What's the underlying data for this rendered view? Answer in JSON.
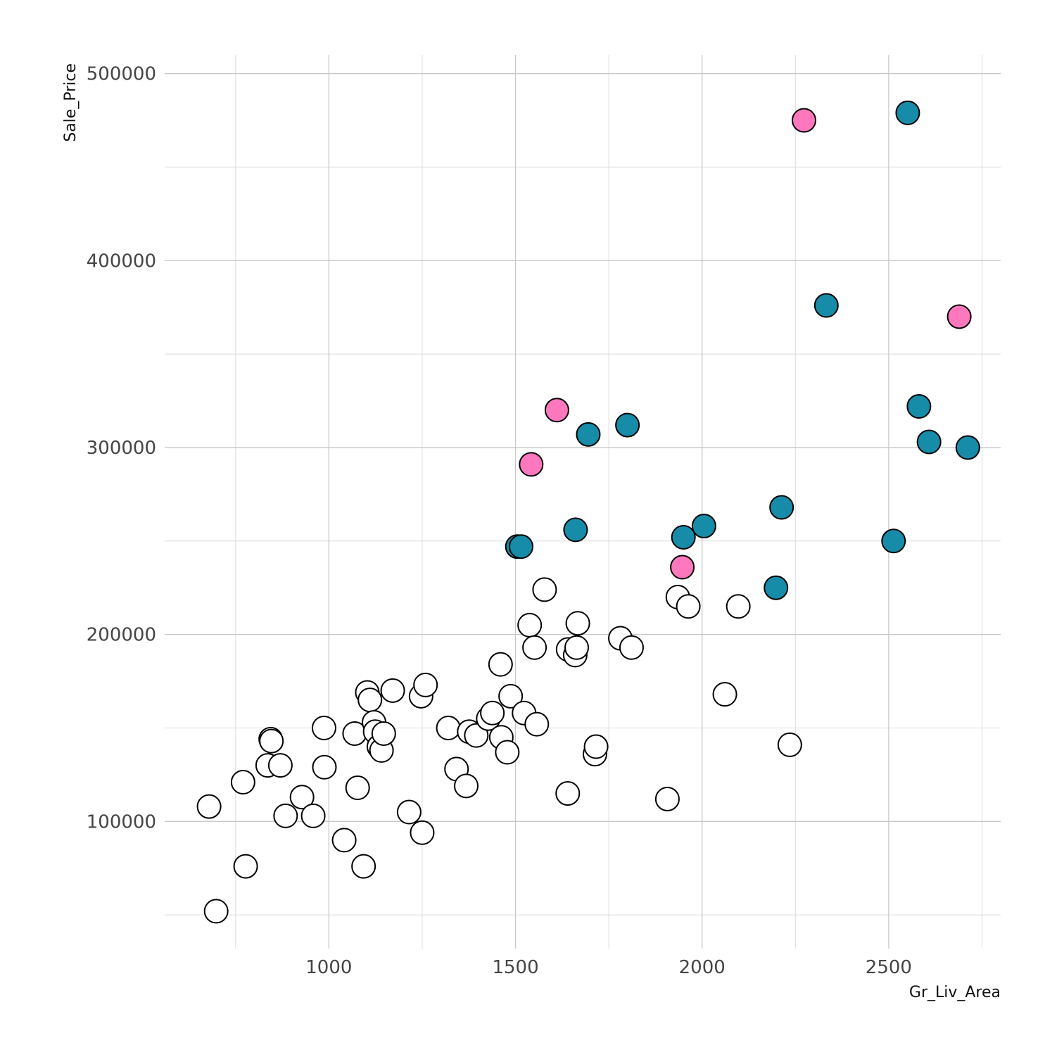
{
  "chart_data": {
    "type": "scatter",
    "xlabel": "Gr_Liv_Area",
    "ylabel": "Sale_Price",
    "xlim": [
      560,
      2800
    ],
    "ylim": [
      32000,
      510000
    ],
    "x_ticks": [
      1000,
      1500,
      2000,
      2500
    ],
    "x_tick_labels": [
      "1000",
      "1500",
      "2000",
      "2500"
    ],
    "x_minor_ticks": [
      750,
      1250,
      1750,
      2250,
      2750
    ],
    "y_ticks": [
      100000,
      200000,
      300000,
      400000,
      500000
    ],
    "y_tick_labels": [
      "100000",
      "200000",
      "300000",
      "400000",
      "500000"
    ],
    "y_minor_ticks": [
      50000,
      150000,
      250000,
      350000,
      450000
    ],
    "grid": true,
    "legend": "none",
    "colors": {
      "open": "#ffffff",
      "teal": "#168ca8",
      "pink": "#ff78be",
      "outline": "#000000"
    },
    "series": [
      {
        "color": "#ffffff",
        "points": [
          [
            679,
            108000
          ],
          [
            698,
            52000
          ],
          [
            770,
            121000
          ],
          [
            777,
            76000
          ],
          [
            836,
            130000
          ],
          [
            844,
            144000
          ],
          [
            846,
            143000
          ],
          [
            870,
            130000
          ],
          [
            884,
            103000
          ],
          [
            928,
            113000
          ],
          [
            958,
            103000
          ],
          [
            987,
            150000
          ],
          [
            988,
            129000
          ],
          [
            1041,
            90000
          ],
          [
            1069,
            147000
          ],
          [
            1077,
            118000
          ],
          [
            1093,
            76000
          ],
          [
            1103,
            169000
          ],
          [
            1110,
            165000
          ],
          [
            1121,
            153000
          ],
          [
            1124,
            148000
          ],
          [
            1134,
            140000
          ],
          [
            1141,
            138000
          ],
          [
            1147,
            147000
          ],
          [
            1171,
            170000
          ],
          [
            1215,
            105000
          ],
          [
            1247,
            167000
          ],
          [
            1250,
            94000
          ],
          [
            1259,
            173000
          ],
          [
            1320,
            150000
          ],
          [
            1342,
            128000
          ],
          [
            1368,
            119000
          ],
          [
            1376,
            148000
          ],
          [
            1395,
            146000
          ],
          [
            1427,
            155000
          ],
          [
            1438,
            158000
          ],
          [
            1460,
            184000
          ],
          [
            1462,
            145000
          ],
          [
            1478,
            137000
          ],
          [
            1487,
            167000
          ],
          [
            1523,
            158000
          ],
          [
            1538,
            205000
          ],
          [
            1551,
            193000
          ],
          [
            1557,
            152000
          ],
          [
            1578,
            224000
          ],
          [
            1640,
            115000
          ],
          [
            1641,
            192000
          ],
          [
            1660,
            189000
          ],
          [
            1664,
            193000
          ],
          [
            1667,
            206000
          ],
          [
            1713,
            136000
          ],
          [
            1716,
            140000
          ],
          [
            1781,
            198000
          ],
          [
            1811,
            193000
          ],
          [
            1907,
            112000
          ],
          [
            1935,
            220000
          ],
          [
            1963,
            215000
          ],
          [
            2061,
            168000
          ],
          [
            2097,
            215000
          ],
          [
            2235,
            141000
          ]
        ]
      },
      {
        "color": "#168ca8",
        "points": [
          [
            1505,
            247000
          ],
          [
            1515,
            247000
          ],
          [
            1661,
            256000
          ],
          [
            1695,
            307000
          ],
          [
            1800,
            312000
          ],
          [
            1950,
            252000
          ],
          [
            2005,
            258000
          ],
          [
            2198,
            225000
          ],
          [
            2213,
            268000
          ],
          [
            2333,
            376000
          ],
          [
            2513,
            250000
          ],
          [
            2551,
            479000
          ],
          [
            2581,
            322000
          ],
          [
            2608,
            303000
          ],
          [
            2712,
            300000
          ]
        ]
      },
      {
        "color": "#ff78be",
        "points": [
          [
            1542,
            291000
          ],
          [
            1611,
            320000
          ],
          [
            1947,
            236000
          ],
          [
            2273,
            475000
          ],
          [
            2689,
            370000
          ]
        ]
      }
    ]
  }
}
